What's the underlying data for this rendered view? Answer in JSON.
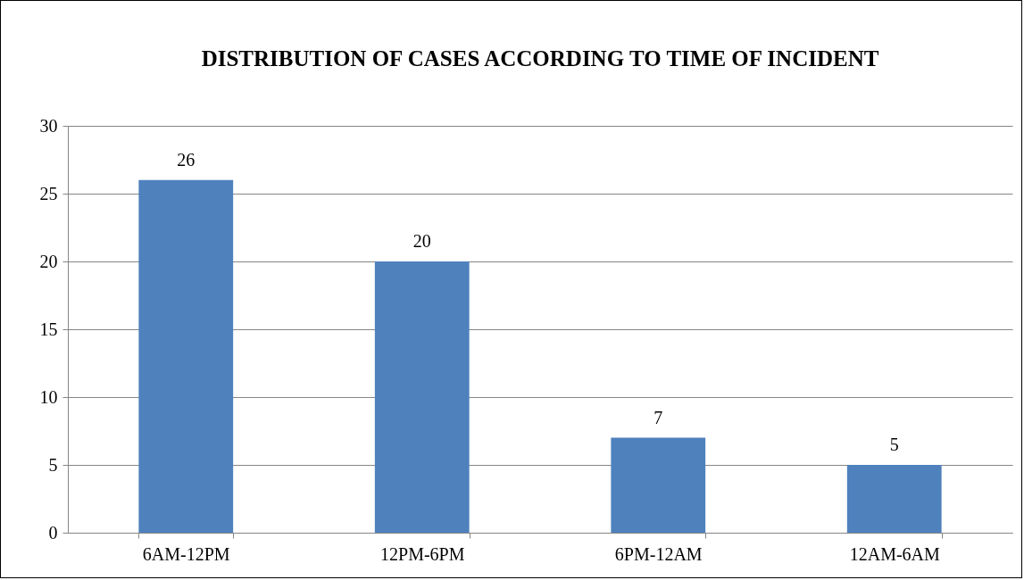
{
  "chart_data": {
    "type": "bar",
    "title": "DISTRIBUTION OF CASES ACCORDING TO TIME OF INCIDENT",
    "categories": [
      "6AM-12PM",
      "12PM-6PM",
      "6PM-12AM",
      "12AM-6AM"
    ],
    "values": [
      26,
      20,
      7,
      5
    ],
    "color": "#4f81bd",
    "ylim": [
      0,
      30
    ],
    "yticks": [
      0,
      5,
      10,
      15,
      20,
      25,
      30
    ],
    "grid": "y",
    "data_labels": true
  }
}
